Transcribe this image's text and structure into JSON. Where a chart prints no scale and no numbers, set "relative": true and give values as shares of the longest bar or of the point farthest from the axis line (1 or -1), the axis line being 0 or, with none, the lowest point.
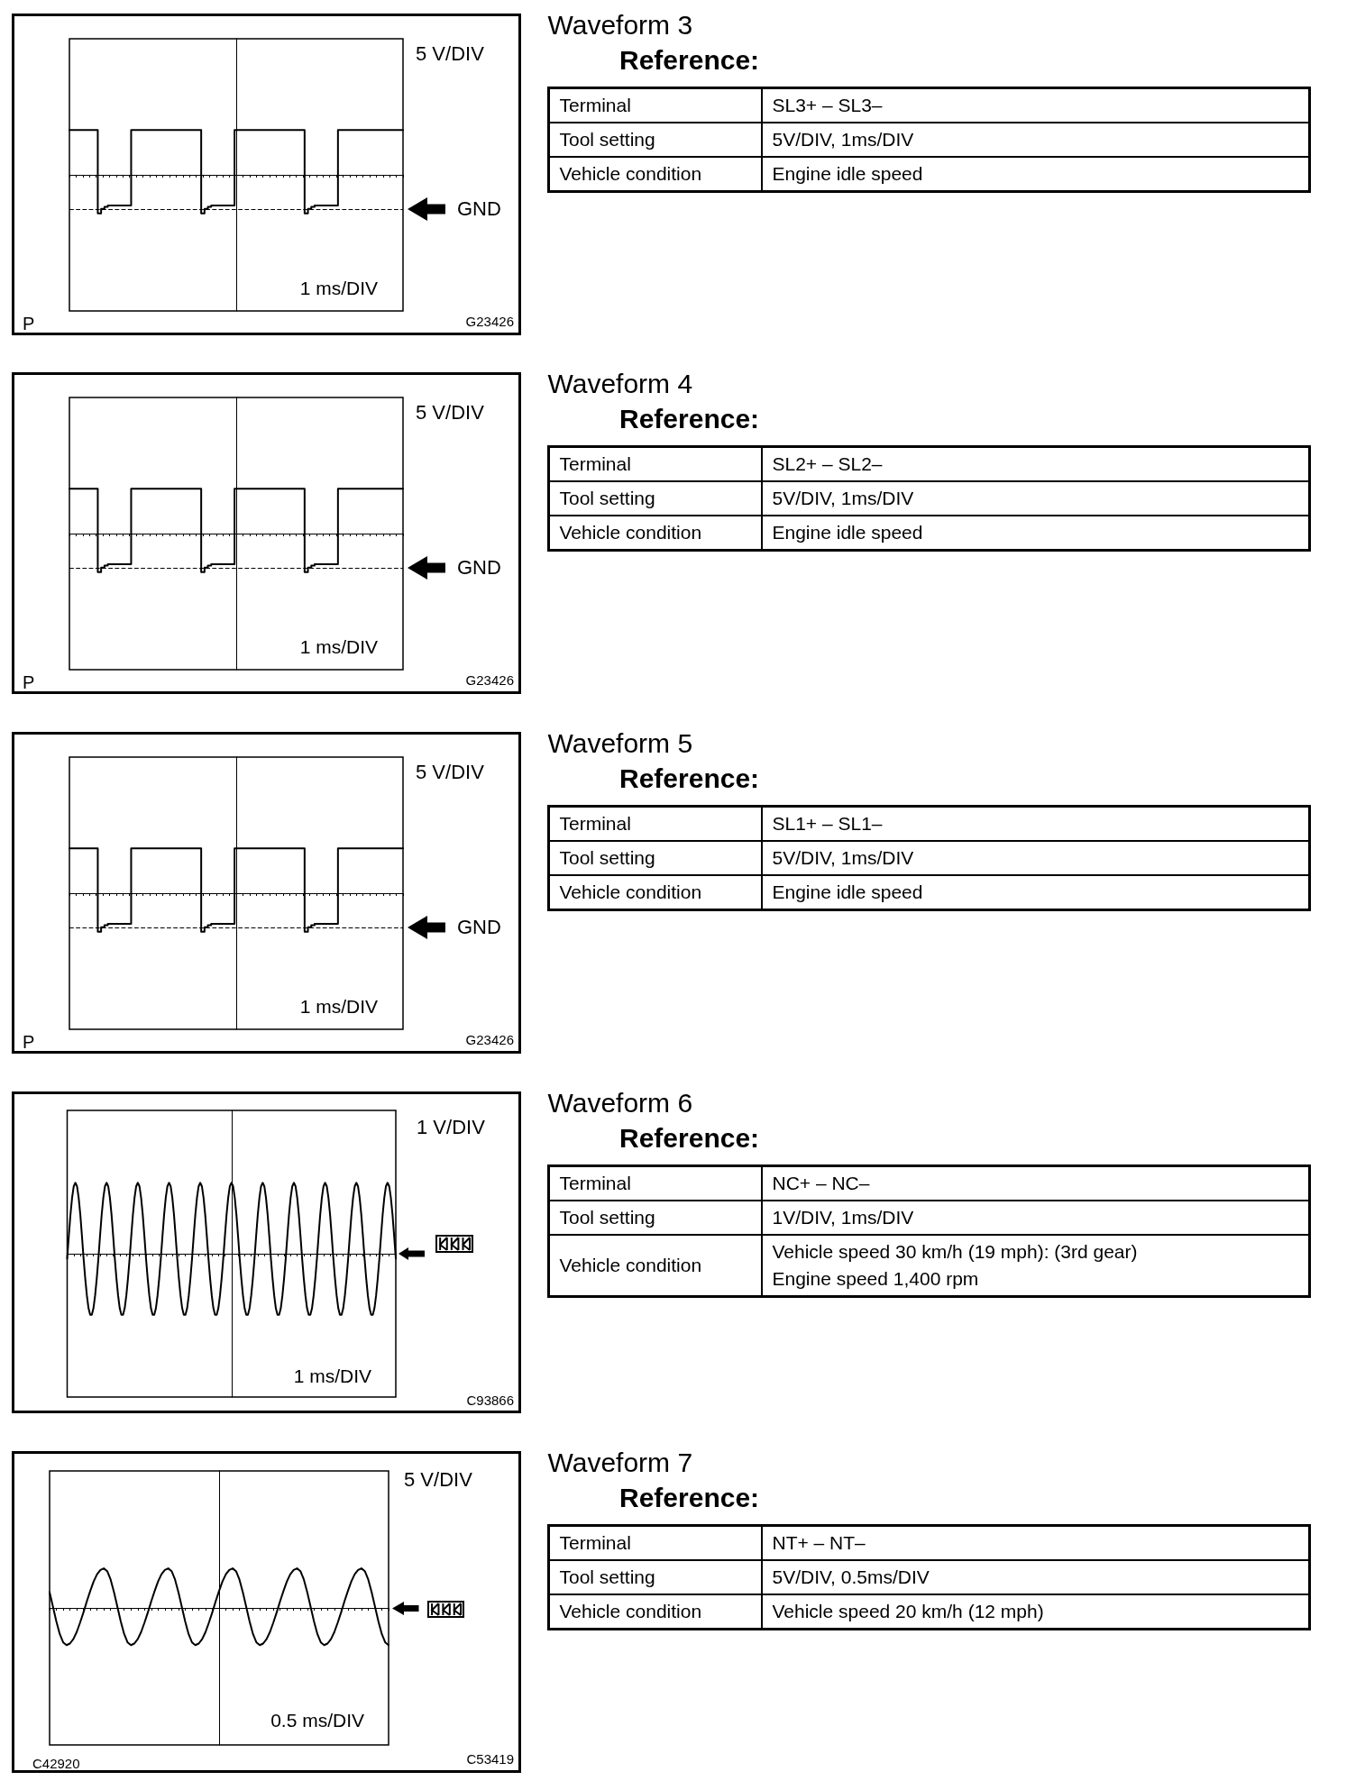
{
  "chart_data": [
    {
      "type": "step",
      "ylabel": "5 V/DIV",
      "xlabel": "1 ms/DIV",
      "categories": [
        null,
        null,
        null,
        null,
        null,
        null,
        null,
        null,
        null,
        null,
        null,
        null,
        null,
        null,
        null,
        null,
        null,
        null,
        null,
        null,
        null,
        null,
        null,
        null,
        null,
        null,
        null,
        null,
        null,
        null,
        null,
        null,
        null,
        null,
        null,
        null,
        null,
        null,
        null,
        null,
        null,
        null,
        null,
        null,
        null,
        null,
        null,
        null,
        null,
        null,
        null,
        null,
        null,
        null,
        null,
        null,
        null,
        null,
        null,
        null,
        null,
        null,
        null,
        null,
        null,
        null,
        null,
        null,
        null,
        null,
        null,
        null,
        null,
        null,
        null,
        null,
        null,
        null,
        null,
        null,
        null,
        null,
        null,
        null,
        null,
        null,
        null,
        null,
        null,
        null,
        null,
        null,
        null,
        null,
        null,
        null,
        null,
        null,
        null,
        null,
        null
      ],
      "values": [
        1,
        1,
        1,
        1,
        1,
        1,
        1,
        1,
        1,
        -0.86,
        -0.76,
        -0.71,
        -0.68,
        -0.68,
        -0.68,
        -0.68,
        -0.68,
        -0.68,
        -0.68,
        1,
        1,
        1,
        1,
        1,
        1,
        1,
        1,
        1,
        1,
        1,
        1,
        1,
        1,
        1,
        1,
        1,
        1,
        1,
        1,
        1,
        -0.86,
        -0.76,
        -0.71,
        -0.68,
        -0.68,
        -0.68,
        -0.68,
        -0.68,
        -0.68,
        -0.68,
        1,
        1,
        1,
        1,
        1,
        1,
        1,
        1,
        1,
        1,
        1,
        1,
        1,
        1,
        1,
        1,
        1,
        1,
        1,
        1,
        1,
        -0.86,
        -0.76,
        -0.71,
        -0.68,
        -0.68,
        -0.68,
        -0.68,
        -0.68,
        -0.68,
        -0.68,
        1,
        1,
        1,
        1,
        1,
        1,
        1,
        1,
        1,
        1,
        1,
        1,
        1,
        1,
        1,
        1,
        1,
        1,
        1,
        1
      ],
      "color": "#000000",
      "relative": true,
      "line_style": "solid",
      "ref_lines": [
        {
          "axis": "y",
          "value": -0.76,
          "label": "GND",
          "line_style": "dashed"
        }
      ],
      "annotations": [
        "P",
        "G23426"
      ]
    },
    {
      "type": "other",
      "title": "Waveform 3",
      "subtitle": "Reference:",
      "annotations": [
        "Terminal",
        "SL3+ – SL3–",
        "Tool setting",
        "5V/DIV, 1ms/DIV",
        "Vehicle condition",
        "Engine idle speed"
      ]
    },
    {
      "type": "step",
      "ylabel": "5 V/DIV",
      "xlabel": "1 ms/DIV",
      "categories": [
        null,
        null,
        null,
        null,
        null,
        null,
        null,
        null,
        null,
        null,
        null,
        null,
        null,
        null,
        null,
        null,
        null,
        null,
        null,
        null,
        null,
        null,
        null,
        null,
        null,
        null,
        null,
        null,
        null,
        null,
        null,
        null,
        null,
        null,
        null,
        null,
        null,
        null,
        null,
        null,
        null,
        null,
        null,
        null,
        null,
        null,
        null,
        null,
        null,
        null,
        null,
        null,
        null,
        null,
        null,
        null,
        null,
        null,
        null,
        null,
        null,
        null,
        null,
        null,
        null,
        null,
        null,
        null,
        null,
        null,
        null,
        null,
        null,
        null,
        null,
        null,
        null,
        null,
        null,
        null,
        null,
        null,
        null,
        null,
        null,
        null,
        null,
        null,
        null,
        null,
        null,
        null,
        null,
        null,
        null,
        null,
        null,
        null,
        null,
        null,
        null
      ],
      "values": [
        1,
        1,
        1,
        1,
        1,
        1,
        1,
        1,
        1,
        -0.86,
        -0.76,
        -0.71,
        -0.68,
        -0.68,
        -0.68,
        -0.68,
        -0.68,
        -0.68,
        -0.68,
        1,
        1,
        1,
        1,
        1,
        1,
        1,
        1,
        1,
        1,
        1,
        1,
        1,
        1,
        1,
        1,
        1,
        1,
        1,
        1,
        1,
        -0.86,
        -0.76,
        -0.71,
        -0.68,
        -0.68,
        -0.68,
        -0.68,
        -0.68,
        -0.68,
        -0.68,
        1,
        1,
        1,
        1,
        1,
        1,
        1,
        1,
        1,
        1,
        1,
        1,
        1,
        1,
        1,
        1,
        1,
        1,
        1,
        1,
        1,
        -0.86,
        -0.76,
        -0.71,
        -0.68,
        -0.68,
        -0.68,
        -0.68,
        -0.68,
        -0.68,
        -0.68,
        1,
        1,
        1,
        1,
        1,
        1,
        1,
        1,
        1,
        1,
        1,
        1,
        1,
        1,
        1,
        1,
        1,
        1,
        1,
        1
      ],
      "color": "#000000",
      "relative": true,
      "line_style": "solid",
      "ref_lines": [
        {
          "axis": "y",
          "value": -0.76,
          "label": "GND",
          "line_style": "dashed"
        }
      ],
      "annotations": [
        "P",
        "G23426"
      ]
    },
    {
      "type": "other",
      "title": "Waveform 4",
      "subtitle": "Reference:",
      "annotations": [
        "Terminal",
        "SL2+ – SL2–",
        "Tool setting",
        "5V/DIV, 1ms/DIV",
        "Vehicle condition",
        "Engine idle speed"
      ]
    },
    {
      "type": "step",
      "ylabel": "5 V/DIV",
      "xlabel": "1 ms/DIV",
      "categories": [
        null,
        null,
        null,
        null,
        null,
        null,
        null,
        null,
        null,
        null,
        null,
        null,
        null,
        null,
        null,
        null,
        null,
        null,
        null,
        null,
        null,
        null,
        null,
        null,
        null,
        null,
        null,
        null,
        null,
        null,
        null,
        null,
        null,
        null,
        null,
        null,
        null,
        null,
        null,
        null,
        null,
        null,
        null,
        null,
        null,
        null,
        null,
        null,
        null,
        null,
        null,
        null,
        null,
        null,
        null,
        null,
        null,
        null,
        null,
        null,
        null,
        null,
        null,
        null,
        null,
        null,
        null,
        null,
        null,
        null,
        null,
        null,
        null,
        null,
        null,
        null,
        null,
        null,
        null,
        null,
        null,
        null,
        null,
        null,
        null,
        null,
        null,
        null,
        null,
        null,
        null,
        null,
        null,
        null,
        null,
        null,
        null,
        null,
        null,
        null,
        null
      ],
      "values": [
        1,
        1,
        1,
        1,
        1,
        1,
        1,
        1,
        1,
        -0.86,
        -0.76,
        -0.71,
        -0.68,
        -0.68,
        -0.68,
        -0.68,
        -0.68,
        -0.68,
        -0.68,
        1,
        1,
        1,
        1,
        1,
        1,
        1,
        1,
        1,
        1,
        1,
        1,
        1,
        1,
        1,
        1,
        1,
        1,
        1,
        1,
        1,
        -0.86,
        -0.76,
        -0.71,
        -0.68,
        -0.68,
        -0.68,
        -0.68,
        -0.68,
        -0.68,
        -0.68,
        1,
        1,
        1,
        1,
        1,
        1,
        1,
        1,
        1,
        1,
        1,
        1,
        1,
        1,
        1,
        1,
        1,
        1,
        1,
        1,
        1,
        -0.86,
        -0.76,
        -0.71,
        -0.68,
        -0.68,
        -0.68,
        -0.68,
        -0.68,
        -0.68,
        -0.68,
        1,
        1,
        1,
        1,
        1,
        1,
        1,
        1,
        1,
        1,
        1,
        1,
        1,
        1,
        1,
        1,
        1,
        1,
        1,
        1
      ],
      "color": "#000000",
      "relative": true,
      "line_style": "solid",
      "ref_lines": [
        {
          "axis": "y",
          "value": -0.76,
          "label": "GND",
          "line_style": "dashed"
        }
      ],
      "annotations": [
        "P",
        "G23426"
      ]
    },
    {
      "type": "other",
      "title": "Waveform 5",
      "subtitle": "Reference:",
      "annotations": [
        "Terminal",
        "SL1+ – SL1–",
        "Tool setting",
        "5V/DIV, 1ms/DIV",
        "Vehicle condition",
        "Engine idle speed"
      ]
    },
    {
      "type": "line",
      "ylabel": "1 V/DIV",
      "xlabel": "1 ms/DIV",
      "categories": [
        null,
        null,
        null,
        null,
        null,
        null,
        null,
        null,
        null,
        null,
        null,
        null,
        null,
        null,
        null,
        null,
        null,
        null,
        null,
        null,
        null,
        null,
        null,
        null,
        null,
        null,
        null,
        null,
        null,
        null,
        null,
        null,
        null,
        null,
        null,
        null,
        null,
        null,
        null,
        null,
        null,
        null,
        null,
        null,
        null,
        null,
        null,
        null,
        null,
        null,
        null,
        null,
        null,
        null,
        null,
        null,
        null,
        null,
        null,
        null,
        null,
        null,
        null,
        null,
        null,
        null,
        null,
        null,
        null,
        null,
        null,
        null,
        null,
        null,
        null,
        null,
        null,
        null,
        null,
        null,
        null,
        null,
        null,
        null,
        null,
        null,
        null,
        null,
        null,
        null,
        null,
        null,
        null,
        null,
        null,
        null,
        null,
        null,
        null,
        null,
        null,
        null,
        null,
        null,
        null,
        null,
        null,
        null,
        null,
        null,
        null,
        null,
        null,
        null,
        null,
        null,
        null,
        null,
        null,
        null,
        null,
        null,
        null,
        null,
        null,
        null,
        null,
        null,
        null,
        null,
        null,
        null,
        null,
        null,
        null,
        null,
        null,
        null,
        null,
        null,
        null,
        null,
        null,
        null,
        null,
        null,
        null,
        null,
        null,
        null,
        null,
        null,
        null,
        null,
        null,
        null,
        null,
        null,
        null,
        null,
        null,
        null,
        null,
        null,
        null,
        null,
        null,
        null,
        null,
        null,
        null,
        null,
        null,
        null,
        null,
        null,
        null,
        null,
        null,
        null,
        null,
        null,
        null,
        null,
        null,
        null,
        null,
        null,
        null,
        null,
        null,
        null,
        null,
        null,
        null,
        null,
        null,
        null,
        null,
        null,
        null
      ],
      "values": [
        -0.07,
        0.25,
        0.55,
        0.79,
        0.95,
        1,
        0.95,
        0.79,
        0.55,
        0.25,
        -0.07,
        -0.35,
        -0.59,
        -0.77,
        -0.86,
        -0.86,
        -0.77,
        -0.59,
        -0.35,
        -0.07,
        0.25,
        0.55,
        0.79,
        0.95,
        1,
        0.95,
        0.79,
        0.55,
        0.25,
        -0.07,
        -0.35,
        -0.59,
        -0.77,
        -0.86,
        -0.86,
        -0.77,
        -0.59,
        -0.35,
        -0.07,
        0.25,
        0.55,
        0.79,
        0.95,
        1,
        0.95,
        0.79,
        0.55,
        0.25,
        -0.07,
        -0.35,
        -0.59,
        -0.77,
        -0.86,
        -0.86,
        -0.77,
        -0.59,
        -0.35,
        -0.07,
        0.25,
        0.55,
        0.79,
        0.95,
        1,
        0.95,
        0.79,
        0.55,
        0.25,
        -0.07,
        -0.35,
        -0.59,
        -0.77,
        -0.86,
        -0.86,
        -0.77,
        -0.59,
        -0.35,
        -0.07,
        0.25,
        0.55,
        0.79,
        0.95,
        1,
        0.95,
        0.79,
        0.55,
        0.25,
        -0.07,
        -0.35,
        -0.59,
        -0.77,
        -0.86,
        -0.86,
        -0.77,
        -0.59,
        -0.35,
        -0.07,
        0.25,
        0.55,
        0.79,
        0.95,
        1,
        0.95,
        0.79,
        0.55,
        0.25,
        -0.07,
        -0.35,
        -0.59,
        -0.77,
        -0.86,
        -0.86,
        -0.77,
        -0.59,
        -0.35,
        -0.07,
        0.25,
        0.55,
        0.79,
        0.95,
        1,
        0.95,
        0.79,
        0.55,
        0.25,
        -0.07,
        -0.35,
        -0.59,
        -0.77,
        -0.86,
        -0.86,
        -0.77,
        -0.59,
        -0.35,
        -0.07,
        0.25,
        0.55,
        0.79,
        0.95,
        1,
        0.95,
        0.79,
        0.55,
        0.25,
        -0.07,
        -0.35,
        -0.59,
        -0.77,
        -0.86,
        -0.86,
        -0.77,
        -0.59,
        -0.35,
        -0.07,
        0.25,
        0.55,
        0.79,
        0.95,
        1,
        0.95,
        0.79,
        0.55,
        0.25,
        -0.07,
        -0.35,
        -0.59,
        -0.77,
        -0.86,
        -0.86,
        -0.77,
        -0.59,
        -0.35,
        -0.07,
        0.25,
        0.55,
        0.79,
        0.95,
        1,
        0.95,
        0.79,
        0.55,
        0.25,
        -0.07,
        -0.35,
        -0.59,
        -0.77,
        -0.86,
        -0.86,
        -0.77,
        -0.59,
        -0.35,
        -0.07,
        0.25,
        0.55,
        0.79,
        0.95,
        1,
        0.95,
        0.79,
        0.55,
        0.25,
        -0.07
      ],
      "color": "#000000",
      "relative": true,
      "line_style": "solid",
      "ref_lines": [
        {
          "axis": "y",
          "value": 0
        }
      ],
      "annotations": [
        "C93866"
      ]
    },
    {
      "type": "other",
      "title": "Waveform 6",
      "subtitle": "Reference:",
      "annotations": [
        "Terminal",
        "NC+ – NC–",
        "Tool setting",
        "1V/DIV, 1ms/DIV",
        "Vehicle condition",
        "Vehicle speed 30 km/h (19 mph): (3rd gear)\nEngine speed 1,400 rpm"
      ]
    },
    {
      "type": "line",
      "ylabel": "5 V/DIV",
      "xlabel": "0.5 ms/DIV",
      "categories": [
        null,
        null,
        null,
        null,
        null,
        null,
        null,
        null,
        null,
        null,
        null,
        null,
        null,
        null,
        null,
        null,
        null,
        null,
        null,
        null,
        null,
        null,
        null,
        null,
        null,
        null,
        null,
        null,
        null,
        null,
        null,
        null,
        null,
        null,
        null,
        null,
        null,
        null,
        null,
        null,
        null,
        null,
        null,
        null,
        null,
        null,
        null,
        null,
        null,
        null,
        null,
        null,
        null,
        null,
        null,
        null,
        null,
        null,
        null,
        null,
        null,
        null,
        null,
        null,
        null,
        null,
        null,
        null,
        null,
        null,
        null,
        null,
        null,
        null,
        null,
        null,
        null,
        null,
        null,
        null,
        null,
        null,
        null,
        null,
        null,
        null,
        null,
        null,
        null,
        null,
        null,
        null,
        null,
        null,
        null,
        null,
        null,
        null,
        null,
        null,
        null
      ],
      "values": [
        0.4,
        0.03,
        -0.34,
        -0.66,
        -0.87,
        -0.94,
        -0.9,
        -0.79,
        -0.61,
        -0.37,
        -0.11,
        0.17,
        0.43,
        0.67,
        0.85,
        0.96,
        1,
        0.93,
        0.72,
        0.4,
        0.03,
        -0.34,
        -0.66,
        -0.87,
        -0.94,
        -0.9,
        -0.79,
        -0.61,
        -0.37,
        -0.11,
        0.17,
        0.43,
        0.67,
        0.85,
        0.96,
        1,
        0.93,
        0.72,
        0.4,
        0.03,
        -0.34,
        -0.66,
        -0.87,
        -0.94,
        -0.9,
        -0.79,
        -0.61,
        -0.37,
        -0.11,
        0.17,
        0.43,
        0.67,
        0.85,
        0.96,
        1,
        0.93,
        0.72,
        0.4,
        0.03,
        -0.34,
        -0.66,
        -0.87,
        -0.94,
        -0.9,
        -0.79,
        -0.61,
        -0.37,
        -0.11,
        0.17,
        0.43,
        0.67,
        0.85,
        0.96,
        1,
        0.93,
        0.72,
        0.4,
        0.03,
        -0.34,
        -0.66,
        -0.87,
        -0.94,
        -0.9,
        -0.79,
        -0.61,
        -0.37,
        -0.11,
        0.17,
        0.43,
        0.67,
        0.85,
        0.96,
        1,
        0.93,
        0.72,
        0.4,
        0.03,
        -0.34,
        -0.66,
        -0.87,
        -0.94
      ],
      "color": "#000000",
      "relative": true,
      "line_style": "solid",
      "ref_lines": [
        {
          "axis": "y",
          "value": 0
        }
      ],
      "annotations": [
        "C42920",
        "C53419"
      ]
    },
    {
      "type": "other",
      "title": "Waveform 7",
      "subtitle": "Reference:",
      "annotations": [
        "Terminal",
        "NT+ – NT–",
        "Tool setting",
        "5V/DIV, 0.5ms/DIV",
        "Vehicle condition",
        "Vehicle speed 20 km/h (12 mph)"
      ]
    }
  ]
}
